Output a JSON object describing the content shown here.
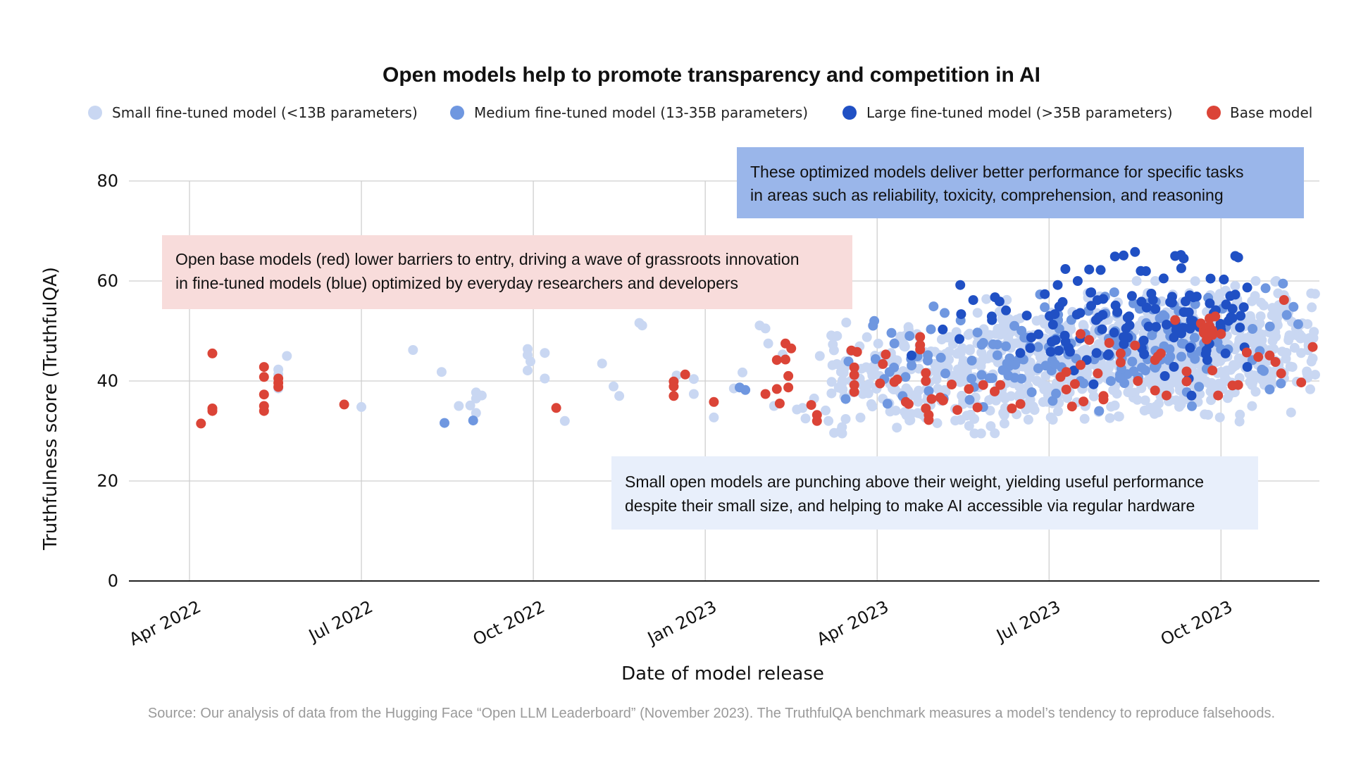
{
  "chart_data": {
    "type": "scatter",
    "title": "Open models help to promote transparency and competition in AI",
    "xlabel": "Date of model release",
    "ylabel": "Truthfulness score (TruthfulQA)",
    "ylim": [
      0,
      80
    ],
    "yticks": [
      0,
      20,
      40,
      60,
      80
    ],
    "xlim_months": [
      0,
      20.7
    ],
    "xticks": [
      {
        "label": "Apr 2022",
        "month": 1
      },
      {
        "label": "Jul 2022",
        "month": 4
      },
      {
        "label": "Oct 2022",
        "month": 7
      },
      {
        "label": "Jan 2023",
        "month": 10
      },
      {
        "label": "Apr 2023",
        "month": 13
      },
      {
        "label": "Jul 2023",
        "month": 16
      },
      {
        "label": "Oct 2023",
        "month": 19
      }
    ],
    "x_unit_note": "month index where 0 = Mar 1 2022",
    "series": [
      {
        "name": "Small fine-tuned model (<13B parameters)",
        "color": "#c9d7f2",
        "generated": true,
        "count": 1100
      },
      {
        "name": "Medium fine-tuned model (13-35B parameters)",
        "color": "#6f97e0",
        "generated": true,
        "count": 190
      },
      {
        "name": "Large fine-tuned model (>35B parameters)",
        "color": "#2050c4",
        "generated": true,
        "count": 120
      },
      {
        "name": "Base model",
        "color": "#db4437",
        "points": [
          [
            1.2,
            31.5
          ],
          [
            1.4,
            45.5
          ],
          [
            1.4,
            34.5
          ],
          [
            1.4,
            34
          ],
          [
            2.3,
            42.8
          ],
          [
            2.3,
            40.8
          ],
          [
            2.3,
            37.3
          ],
          [
            2.3,
            35
          ],
          [
            2.3,
            34
          ],
          [
            2.55,
            40.5
          ],
          [
            2.55,
            39.6
          ],
          [
            2.55,
            38.8
          ],
          [
            3.7,
            35.3
          ],
          [
            7.4,
            34.6
          ],
          [
            9.45,
            39.9
          ],
          [
            9.45,
            38.9
          ],
          [
            9.45,
            37
          ],
          [
            9.65,
            41.3
          ],
          [
            10.15,
            35.8
          ],
          [
            11.05,
            37.4
          ],
          [
            11.25,
            44.2
          ],
          [
            11.25,
            38.4
          ],
          [
            11.3,
            35.5
          ],
          [
            11.4,
            47.5
          ],
          [
            11.4,
            44.3
          ],
          [
            11.45,
            41
          ],
          [
            11.45,
            38.7
          ],
          [
            11.5,
            46.5
          ],
          [
            11.85,
            35.2
          ],
          [
            11.95,
            32
          ],
          [
            11.95,
            33.2
          ],
          [
            12.55,
            46.1
          ],
          [
            12.65,
            45.8
          ],
          [
            12.6,
            42.7
          ],
          [
            12.6,
            41.2
          ],
          [
            12.6,
            39.2
          ],
          [
            12.6,
            37.8
          ],
          [
            13.05,
            39.5
          ],
          [
            13.1,
            43.4
          ],
          [
            13.15,
            45.3
          ],
          [
            13.3,
            39.8
          ],
          [
            13.35,
            40.3
          ],
          [
            13.5,
            35.8
          ],
          [
            13.55,
            35.4
          ],
          [
            13.75,
            48.8
          ],
          [
            13.75,
            47.2
          ],
          [
            13.75,
            46.3
          ],
          [
            13.85,
            41.6
          ],
          [
            13.85,
            40
          ],
          [
            13.85,
            34.5
          ],
          [
            13.9,
            33.2
          ],
          [
            13.9,
            32.2
          ],
          [
            13.95,
            36.4
          ],
          [
            14.1,
            36.7
          ],
          [
            14.15,
            36.1
          ],
          [
            14.3,
            39.3
          ],
          [
            14.4,
            34.2
          ],
          [
            14.6,
            38.4
          ],
          [
            14.75,
            34.7
          ],
          [
            14.85,
            39.2
          ],
          [
            15.05,
            37.9
          ],
          [
            15.15,
            39.2
          ],
          [
            15.35,
            34.5
          ],
          [
            15.5,
            35.4
          ],
          [
            16.2,
            40.8
          ],
          [
            16.3,
            41.8
          ],
          [
            16.3,
            38.3
          ],
          [
            16.4,
            34.9
          ],
          [
            16.45,
            39.4
          ],
          [
            16.55,
            49.4
          ],
          [
            16.55,
            43.2
          ],
          [
            16.6,
            35.9
          ],
          [
            16.7,
            48.2
          ],
          [
            16.85,
            41.5
          ],
          [
            16.95,
            37
          ],
          [
            16.95,
            36.3
          ],
          [
            17.05,
            47.6
          ],
          [
            17.25,
            45.5
          ],
          [
            17.25,
            43.7
          ],
          [
            17.5,
            47.1
          ],
          [
            17.55,
            40
          ],
          [
            17.85,
            44.2
          ],
          [
            17.85,
            38.1
          ],
          [
            17.9,
            44.9
          ],
          [
            17.95,
            45.5
          ],
          [
            18.05,
            37.1
          ],
          [
            18.2,
            52.2
          ],
          [
            18.4,
            41.9
          ],
          [
            18.4,
            39.9
          ],
          [
            18.65,
            51.5
          ],
          [
            18.7,
            50.2
          ],
          [
            18.7,
            49.6
          ],
          [
            18.75,
            48.3
          ],
          [
            18.8,
            52.5
          ],
          [
            18.8,
            51
          ],
          [
            18.85,
            50.1
          ],
          [
            18.85,
            49.2
          ],
          [
            18.9,
            52.9
          ],
          [
            18.85,
            42.1
          ],
          [
            19.0,
            49.4
          ],
          [
            18.95,
            37.1
          ],
          [
            19.2,
            39.1
          ],
          [
            19.3,
            39.2
          ],
          [
            19.45,
            45.7
          ],
          [
            19.65,
            44.8
          ],
          [
            19.85,
            45.1
          ],
          [
            19.95,
            43.8
          ],
          [
            20.05,
            41.5
          ],
          [
            20.1,
            56.2
          ],
          [
            20.4,
            39.7
          ],
          [
            20.6,
            46.8
          ]
        ]
      }
    ],
    "annotations": [
      {
        "lines": [
          "These optimized models deliver better performance for specific tasks",
          "in areas such as reliability, toxicity, comprehension, and reasoning"
        ],
        "color": "#9ab6ea"
      },
      {
        "lines": [
          "Open base models (red) lower barriers to entry, driving a wave of grassroots innovation",
          "in fine-tuned models (blue) optimized by everyday researchers and developers"
        ],
        "color": "#f8dcdb"
      },
      {
        "lines": [
          "Small open models are punching above their weight, yielding useful performance",
          "despite their small size, and helping to make AI accessible via regular hardware"
        ],
        "color": "#e8effb"
      }
    ],
    "source": "Source: Our analysis of data from the Hugging Face “Open LLM Leaderboard” (November 2023). The TruthfulQA benchmark measures a model’s tendency to reproduce falsehoods."
  }
}
